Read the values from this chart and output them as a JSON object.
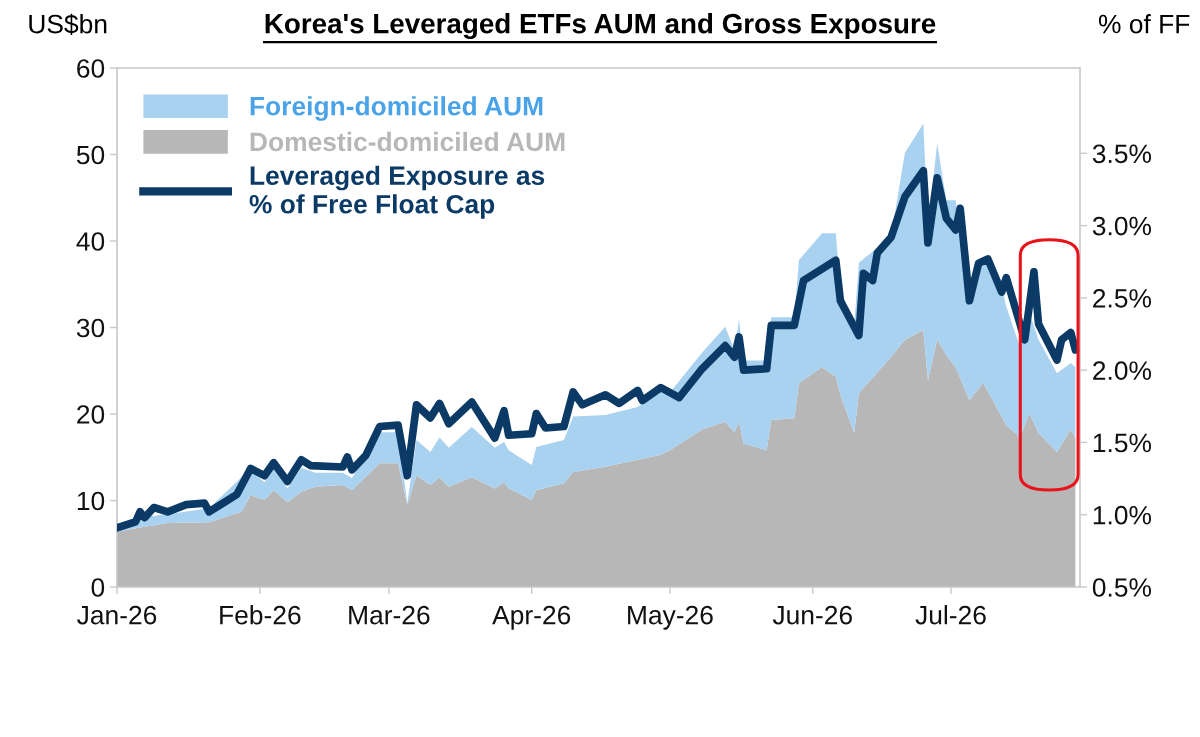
{
  "chart_data": {
    "type": "area",
    "stacked": true,
    "title": "Korea's Leveraged ETFs AUM and Gross Exposure",
    "ylabel": "US$bn",
    "y2label": "% of FF",
    "x": [
      "2026-01-01",
      "2026-01-05",
      "2026-01-12",
      "2026-01-21",
      "2026-01-28",
      "2026-01-30",
      "2026-02-02",
      "2026-02-04",
      "2026-02-07",
      "2026-02-10",
      "2026-02-13",
      "2026-02-19",
      "2026-02-21",
      "2026-02-27",
      "2026-03-03",
      "2026-03-05",
      "2026-03-07",
      "2026-03-10",
      "2026-03-12",
      "2026-03-14",
      "2026-03-19",
      "2026-03-24",
      "2026-03-26",
      "2026-03-27",
      "2026-04-01",
      "2026-04-02",
      "2026-04-08",
      "2026-04-10",
      "2026-04-17",
      "2026-04-24",
      "2026-04-29",
      "2026-05-01",
      "2026-05-08",
      "2026-05-13",
      "2026-05-15",
      "2026-05-16",
      "2026-05-17",
      "2026-05-22",
      "2026-05-23",
      "2026-05-28",
      "2026-05-29",
      "2026-06-03",
      "2026-06-06",
      "2026-06-07",
      "2026-06-10",
      "2026-06-11",
      "2026-06-18",
      "2026-06-21",
      "2026-06-25",
      "2026-06-26",
      "2026-06-28",
      "2026-06-30",
      "2026-07-02",
      "2026-07-05",
      "2026-07-08",
      "2026-07-12",
      "2026-07-13",
      "2026-07-16",
      "2026-07-18",
      "2026-07-20",
      "2026-07-24",
      "2026-07-27",
      "2026-07-28"
    ],
    "series": [
      {
        "name": "Domestic-domiciled AUM",
        "color": "#b7b7b7",
        "values": [
          6.4,
          6.8,
          7.4,
          7.5,
          8.7,
          10.6,
          10.1,
          11.2,
          9.8,
          11.0,
          11.6,
          11.8,
          11.2,
          14.3,
          14.3,
          9.5,
          12.9,
          11.8,
          12.7,
          11.6,
          12.7,
          11.4,
          12.1,
          11.4,
          10.1,
          11.2,
          12.0,
          13.3,
          13.9,
          14.7,
          15.3,
          15.8,
          18.2,
          19.1,
          17.9,
          19.1,
          16.6,
          15.8,
          19.3,
          19.5,
          23.6,
          25.4,
          24.3,
          22.2,
          17.8,
          22.4,
          26.6,
          28.6,
          29.7,
          23.9,
          28.6,
          26.8,
          25.4,
          21.6,
          23.6,
          19.7,
          18.7,
          17.3,
          20.1,
          17.8,
          15.6,
          18.2,
          17.3
        ]
      },
      {
        "name": "Foreign-domiciled AUM",
        "color": "#a9d1f0",
        "values": [
          0.9,
          1.2,
          1.0,
          1.6,
          4.0,
          2.9,
          2.0,
          2.6,
          1.6,
          2.8,
          1.6,
          1.4,
          1.4,
          3.6,
          3.6,
          0.2,
          4.1,
          3.8,
          4.6,
          4.5,
          5.8,
          4.7,
          4.7,
          4.4,
          4.0,
          5.0,
          5.0,
          6.4,
          6.0,
          6.1,
          7.5,
          6.7,
          8.9,
          11.0,
          9.5,
          11.8,
          9.6,
          10.4,
          11.9,
          11.7,
          14.2,
          15.5,
          16.6,
          12.1,
          12.5,
          15.1,
          13.9,
          21.6,
          23.9,
          17.7,
          22.7,
          17.9,
          19.3,
          12.4,
          14.4,
          15.0,
          13.7,
          10.4,
          11.6,
          10.8,
          9.1,
          7.7,
          8.1
        ]
      },
      {
        "name": "Leveraged Exposure as\n% of Free Float Cap",
        "type": "line",
        "axis": "y2",
        "color": "#0b3a66",
        "x": [
          "2026-01-01",
          "2026-01-05",
          "2026-01-06",
          "2026-01-07",
          "2026-01-09",
          "2026-01-12",
          "2026-01-16",
          "2026-01-20",
          "2026-01-21",
          "2026-01-27",
          "2026-01-30",
          "2026-02-02",
          "2026-02-04",
          "2026-02-07",
          "2026-02-10",
          "2026-02-12",
          "2026-02-19",
          "2026-02-20",
          "2026-02-21",
          "2026-02-24",
          "2026-02-27",
          "2026-03-03",
          "2026-03-05",
          "2026-03-07",
          "2026-03-10",
          "2026-03-12",
          "2026-03-14",
          "2026-03-19",
          "2026-03-24",
          "2026-03-26",
          "2026-03-27",
          "2026-04-01",
          "2026-04-02",
          "2026-04-04",
          "2026-04-08",
          "2026-04-10",
          "2026-04-12",
          "2026-04-17",
          "2026-04-20",
          "2026-04-24",
          "2026-04-25",
          "2026-04-29",
          "2026-05-03",
          "2026-05-08",
          "2026-05-13",
          "2026-05-15",
          "2026-05-16",
          "2026-05-17",
          "2026-05-22",
          "2026-05-23",
          "2026-05-28",
          "2026-05-30",
          "2026-06-01",
          "2026-06-06",
          "2026-06-07",
          "2026-06-11",
          "2026-06-12",
          "2026-06-14",
          "2026-06-15",
          "2026-06-18",
          "2026-06-21",
          "2026-06-25",
          "2026-06-26",
          "2026-06-28",
          "2026-06-30",
          "2026-07-02",
          "2026-07-03",
          "2026-07-05",
          "2026-07-07",
          "2026-07-09",
          "2026-07-12",
          "2026-07-13",
          "2026-07-17",
          "2026-07-19",
          "2026-07-20",
          "2026-07-24",
          "2026-07-25",
          "2026-07-27",
          "2026-07-28"
        ],
        "values": [
          0.91,
          0.95,
          1.02,
          0.98,
          1.05,
          1.02,
          1.07,
          1.08,
          1.02,
          1.14,
          1.32,
          1.27,
          1.36,
          1.23,
          1.38,
          1.34,
          1.33,
          1.4,
          1.31,
          1.41,
          1.61,
          1.62,
          1.27,
          1.76,
          1.67,
          1.77,
          1.63,
          1.78,
          1.53,
          1.72,
          1.55,
          1.56,
          1.7,
          1.6,
          1.61,
          1.85,
          1.76,
          1.83,
          1.77,
          1.86,
          1.79,
          1.88,
          1.81,
          2.01,
          2.17,
          2.09,
          2.23,
          2.0,
          2.01,
          2.31,
          2.31,
          2.62,
          2.66,
          2.76,
          2.48,
          2.24,
          2.67,
          2.62,
          2.81,
          2.92,
          3.2,
          3.38,
          2.88,
          3.33,
          3.05,
          2.97,
          3.12,
          2.48,
          2.74,
          2.77,
          2.54,
          2.64,
          2.21,
          2.68,
          2.32,
          2.07,
          2.21,
          2.26,
          2.14
        ]
      }
    ],
    "xlim": [
      "2026-01-01",
      "2026-07-29"
    ],
    "xticks": [
      {
        "value": "2026-01-01",
        "label": "Jan-26"
      },
      {
        "value": "2026-02-01",
        "label": "Feb-26"
      },
      {
        "value": "2026-03-01",
        "label": "Mar-26"
      },
      {
        "value": "2026-04-01",
        "label": "Apr-26"
      },
      {
        "value": "2026-05-01",
        "label": "May-26"
      },
      {
        "value": "2026-06-01",
        "label": "Jun-26"
      },
      {
        "value": "2026-07-01",
        "label": "Jul-26"
      }
    ],
    "ylim": [
      0,
      60
    ],
    "yticks": [
      0,
      10,
      20,
      30,
      40,
      50,
      60
    ],
    "y2lim": [
      0.5,
      4.09
    ],
    "y2ticks": [
      {
        "value": 0.5,
        "label": "0.5%"
      },
      {
        "value": 1.0,
        "label": "1.0%"
      },
      {
        "value": 1.5,
        "label": "1.5%"
      },
      {
        "value": 2.0,
        "label": "2.0%"
      },
      {
        "value": 2.5,
        "label": "2.5%"
      },
      {
        "value": 3.0,
        "label": "3.0%"
      },
      {
        "value": 3.5,
        "label": "3.5%"
      }
    ],
    "legend": "top left",
    "grid": false
  }
}
